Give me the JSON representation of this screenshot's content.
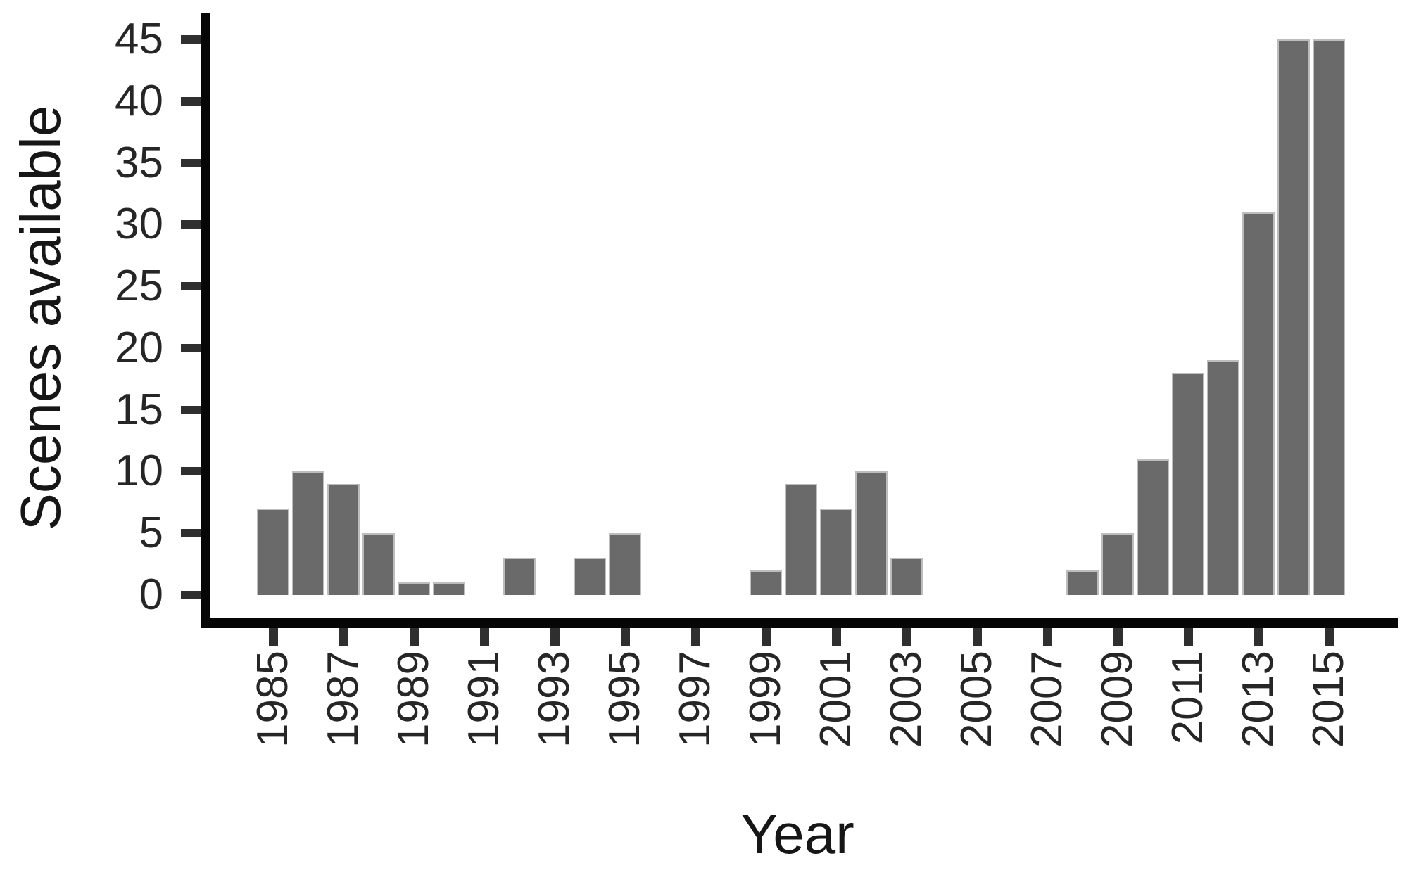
{
  "chart_data": {
    "type": "bar",
    "title": "",
    "xlabel": "Year",
    "ylabel": "Scenes available",
    "categories": [
      1985,
      1986,
      1987,
      1988,
      1989,
      1990,
      1991,
      1992,
      1993,
      1994,
      1995,
      1996,
      1997,
      1998,
      1999,
      2000,
      2001,
      2002,
      2003,
      2004,
      2005,
      2006,
      2007,
      2008,
      2009,
      2010,
      2011,
      2012,
      2013,
      2014,
      2015
    ],
    "values": [
      7,
      10,
      9,
      5,
      1,
      1,
      0,
      3,
      0,
      3,
      5,
      0,
      0,
      0,
      2,
      9,
      7,
      10,
      3,
      0,
      0,
      0,
      0,
      2,
      5,
      11,
      18,
      19,
      31,
      45,
      45
    ],
    "x_tick_labels": [
      "1985",
      "1987",
      "1989",
      "1991",
      "1993",
      "1995",
      "1997",
      "1999",
      "2001",
      "2003",
      "2005",
      "2007",
      "2009",
      "2011",
      "2013",
      "2015"
    ],
    "x_tick_years": [
      1985,
      1987,
      1989,
      1991,
      1993,
      1995,
      1997,
      1999,
      2001,
      2003,
      2005,
      2007,
      2009,
      2011,
      2013,
      2015
    ],
    "y_tick_labels": [
      "0",
      "5",
      "10",
      "15",
      "20",
      "25",
      "30",
      "35",
      "40",
      "45"
    ],
    "y_tick_values": [
      0,
      5,
      10,
      15,
      20,
      25,
      30,
      35,
      40,
      45
    ],
    "xlim": [
      1984,
      2016
    ],
    "ylim": [
      0,
      45
    ],
    "grid": "off",
    "legend": "none",
    "bar_color": "#6a6a6a",
    "bar_edge_color": "#bdbdbd",
    "axis_color": "#060606",
    "tick_color": "#2f2f2f",
    "text_color": "#262626"
  }
}
